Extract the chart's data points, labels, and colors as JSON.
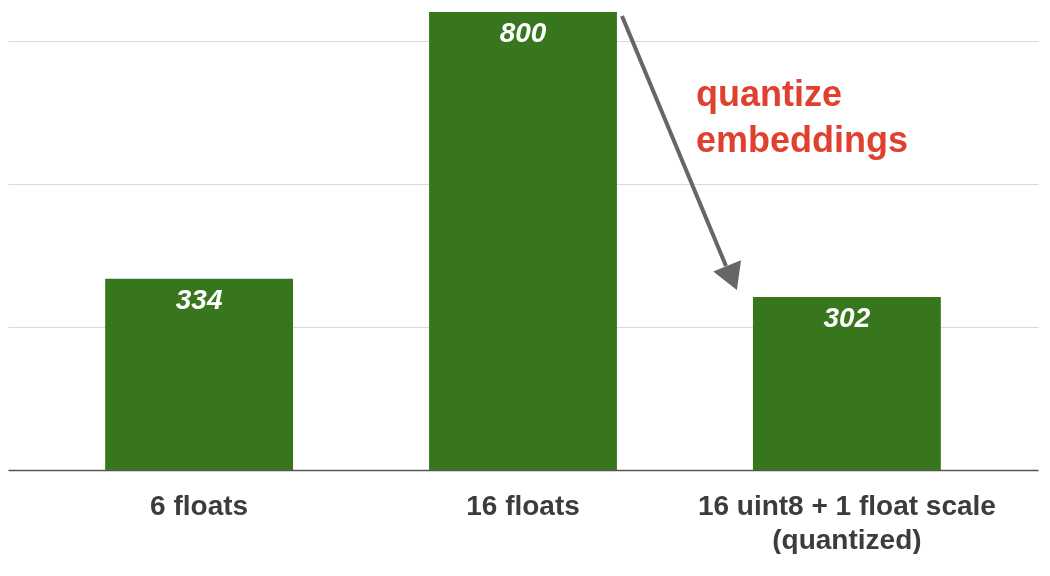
{
  "chart_data": {
    "type": "bar",
    "categories": [
      "6 floats",
      "16 floats",
      "16 uint8 + 1 float scale\n(quantized)"
    ],
    "values": [
      334,
      800,
      302
    ],
    "color": "#38761d",
    "data_labels": true,
    "ylim": [
      0,
      800
    ],
    "yticks": [
      {
        "value": 0,
        "label": null
      },
      {
        "value": 250,
        "label": null
      },
      {
        "value": 500,
        "label": null
      },
      {
        "value": 750,
        "label": null
      }
    ],
    "tick_labels": "x",
    "grid": "y",
    "annotations": [
      "quantize embeddings"
    ]
  }
}
